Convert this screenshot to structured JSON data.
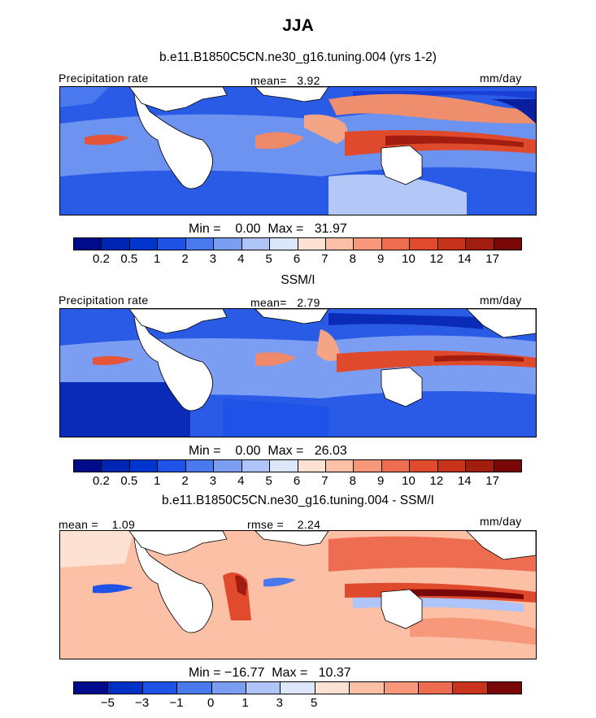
{
  "season": "JJA",
  "panels": [
    {
      "title": "b.e11.B1850C5CN.ne30_g16.tuning.004 (yrs 1-2)",
      "left_label": "Precipitation rate",
      "center_label": "mean=   3.92",
      "right_label": "mm/day",
      "minmax": "Min =    0.00  Max =   31.97",
      "colorbar_ticks": [
        "0.2",
        "0.5",
        "1",
        "2",
        "3",
        "4",
        "5",
        "6",
        "7",
        "8",
        "9",
        "10",
        "12",
        "14",
        "17"
      ],
      "colorbar_colors": [
        "#000b8c",
        "#0024b4",
        "#0036d0",
        "#1f52e6",
        "#4a78ee",
        "#7b9ef3",
        "#afc4f8",
        "#dce7fb",
        "#fde1d2",
        "#fcc0a6",
        "#f7987a",
        "#ee6d50",
        "#e24a2e",
        "#c9331c",
        "#a31c10",
        "#7a0707"
      ]
    },
    {
      "title": "SSM/I",
      "left_label": "Precipitation rate",
      "center_label": "mean=   2.79",
      "right_label": "mm/day",
      "minmax": "Min =    0.00  Max =   26.03",
      "colorbar_ticks": [
        "0.2",
        "0.5",
        "1",
        "2",
        "3",
        "4",
        "5",
        "6",
        "7",
        "8",
        "9",
        "10",
        "12",
        "14",
        "17"
      ],
      "colorbar_colors": [
        "#000b8c",
        "#0024b4",
        "#0036d0",
        "#1f52e6",
        "#4a78ee",
        "#7b9ef3",
        "#afc4f8",
        "#dce7fb",
        "#fde1d2",
        "#fcc0a6",
        "#f7987a",
        "#ee6d50",
        "#e24a2e",
        "#c9331c",
        "#a31c10",
        "#7a0707"
      ]
    },
    {
      "title": "b.e11.B1850C5CN.ne30_g16.tuning.004 - SSM/I",
      "left_label": "mean =    1.09",
      "center_label": "rmse =    2.24",
      "right_label": "mm/day",
      "minmax": "Min = −16.77  Max =   10.37",
      "colorbar_ticks": [
        "−5",
        "−3",
        "−1",
        "0",
        "1",
        "3",
        "5"
      ],
      "colorbar_colors": [
        "#000b8c",
        "#0030c4",
        "#1f52e6",
        "#4a78ee",
        "#7b9ef3",
        "#afc4f8",
        "#dce7fb",
        "#fde1d2",
        "#fcc0a6",
        "#f7987a",
        "#ee6d50",
        "#c9331c",
        "#7a0707"
      ]
    }
  ]
}
